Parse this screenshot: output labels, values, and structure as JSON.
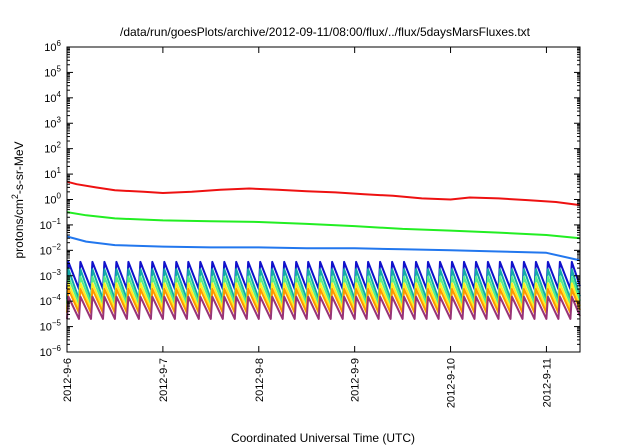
{
  "chart_data": {
    "type": "line",
    "title": "/data/run/goesPlots/archive/2012-09-11/08:00/flux/../flux/5daysMarsFluxes.txt",
    "xlabel": "Coordinated Universal Time (UTC)",
    "ylabel": {
      "prefix": "protons/cm",
      "superscript": "2",
      "suffix": "-s-sr-MeV"
    },
    "y_scale": "log",
    "ylim_exp": [
      -6,
      6
    ],
    "y_tick_exponents": [
      -6,
      -5,
      -4,
      -3,
      -2,
      -1,
      0,
      1,
      2,
      3,
      4,
      5,
      6
    ],
    "y_tick_base": "10",
    "xlim_days": [
      0,
      5.35
    ],
    "x_tick_labels": [
      "2012-9-6",
      "2012-9-7",
      "2012-9-8",
      "2012-9-9",
      "2012-9-10",
      "2012-9-11"
    ],
    "x_tick_positions_days": [
      0,
      1,
      2,
      3,
      4,
      5
    ],
    "grid": false,
    "legend": "none",
    "series": [
      {
        "color": "#ee1111",
        "pattern": "trend",
        "points": [
          [
            0,
            5.0
          ],
          [
            0.1,
            4.0
          ],
          [
            0.3,
            3.0
          ],
          [
            0.5,
            2.3
          ],
          [
            0.8,
            2.0
          ],
          [
            1.0,
            1.8
          ],
          [
            1.3,
            2.0
          ],
          [
            1.6,
            2.4
          ],
          [
            1.9,
            2.7
          ],
          [
            2.2,
            2.4
          ],
          [
            2.5,
            2.1
          ],
          [
            2.8,
            1.9
          ],
          [
            3.1,
            1.6
          ],
          [
            3.4,
            1.4
          ],
          [
            3.7,
            1.1
          ],
          [
            4.0,
            1.0
          ],
          [
            4.2,
            1.2
          ],
          [
            4.5,
            1.1
          ],
          [
            4.8,
            0.95
          ],
          [
            5.1,
            0.8
          ],
          [
            5.35,
            0.6
          ]
        ]
      },
      {
        "color": "#22ee22",
        "pattern": "trend",
        "points": [
          [
            0,
            0.32
          ],
          [
            0.2,
            0.24
          ],
          [
            0.5,
            0.18
          ],
          [
            1.0,
            0.15
          ],
          [
            1.5,
            0.14
          ],
          [
            2.0,
            0.13
          ],
          [
            2.5,
            0.11
          ],
          [
            3.0,
            0.09
          ],
          [
            3.5,
            0.07
          ],
          [
            4.0,
            0.06
          ],
          [
            4.5,
            0.05
          ],
          [
            5.0,
            0.04
          ],
          [
            5.35,
            0.03
          ]
        ]
      },
      {
        "color": "#2277ee",
        "pattern": "trend",
        "points": [
          [
            0,
            0.035
          ],
          [
            0.2,
            0.022
          ],
          [
            0.5,
            0.016
          ],
          [
            1.0,
            0.014
          ],
          [
            1.5,
            0.013
          ],
          [
            2.0,
            0.013
          ],
          [
            2.5,
            0.012
          ],
          [
            3.0,
            0.012
          ],
          [
            3.5,
            0.011
          ],
          [
            4.0,
            0.01
          ],
          [
            4.5,
            0.009
          ],
          [
            5.0,
            0.008
          ],
          [
            5.35,
            0.004
          ]
        ]
      },
      {
        "color": "#1111cc",
        "pattern": "sawtooth",
        "high": 0.0035,
        "low": 0.0003,
        "cycles_per_day": 8
      },
      {
        "color": "#11aaaa",
        "pattern": "sawtooth",
        "high": 0.0018,
        "low": 0.00012,
        "cycles_per_day": 8
      },
      {
        "color": "#55ee88",
        "pattern": "sawtooth",
        "high": 0.0009,
        "low": 8e-05,
        "cycles_per_day": 8
      },
      {
        "color": "#ffee22",
        "pattern": "sawtooth",
        "high": 0.0005,
        "low": 5e-05,
        "cycles_per_day": 8
      },
      {
        "color": "#ff9900",
        "pattern": "sawtooth",
        "high": 0.0003,
        "low": 3.5e-05,
        "cycles_per_day": 8
      },
      {
        "color": "#993377",
        "pattern": "sawtooth",
        "high": 0.00015,
        "low": 2e-05,
        "cycles_per_day": 8
      }
    ]
  }
}
